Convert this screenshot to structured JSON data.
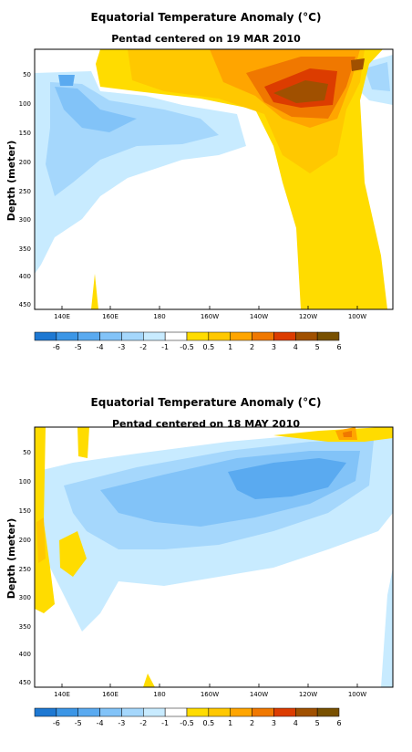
{
  "chart_data": [
    {
      "type": "heatmap",
      "title": "Equatorial Temperature Anomaly (°C)",
      "subtitle": "Pentad centered on 19 MAR 2010",
      "xlabel": "",
      "ylabel": "Depth (meter)",
      "x_ticks": [
        "140E",
        "160E",
        "180",
        "160W",
        "140W",
        "120W",
        "100W"
      ],
      "y_ticks": [
        50,
        100,
        150,
        200,
        250,
        300,
        350,
        400,
        450
      ],
      "ylim": [
        455,
        10
      ],
      "xlim": [
        "130E",
        "90W"
      ],
      "colorbar": {
        "labels": [
          "-6",
          "-5",
          "-4",
          "-3",
          "-2",
          "-1",
          "-0.5",
          "0.5",
          "1",
          "2",
          "3",
          "4",
          "5",
          "6"
        ],
        "colors": [
          "#1e78d2",
          "#3c96e6",
          "#5aaaf0",
          "#82c3f8",
          "#a5d7fc",
          "#c8ebff",
          "#ffffff",
          "#ffdc00",
          "#ffc800",
          "#ffa500",
          "#f07800",
          "#dc3c00",
          "#a05000",
          "#785000"
        ]
      },
      "regions": [
        {
          "label": "warm anomaly 1-2",
          "x_range": [
            "165E",
            "95W"
          ],
          "depth_range": [
            10,
            450
          ]
        },
        {
          "label": "warm core 4-6",
          "x_range": [
            "130W",
            "105W"
          ],
          "depth_range": [
            40,
            130
          ]
        },
        {
          "label": "cold anomaly -0.5 to -2",
          "x_range": [
            "132E",
            "160W"
          ],
          "depth_range": [
            50,
            300
          ]
        },
        {
          "label": "cold anomaly -0.5 to -1",
          "x_range": [
            "100W",
            "91W"
          ],
          "depth_range": [
            40,
            110
          ]
        }
      ]
    },
    {
      "type": "heatmap",
      "title": "Equatorial Temperature Anomaly (°C)",
      "subtitle": "Pentad centered on 18 MAY 2010",
      "xlabel": "",
      "ylabel": "Depth (meter)",
      "x_ticks": [
        "140E",
        "160E",
        "180",
        "160W",
        "140W",
        "120W",
        "100W"
      ],
      "y_ticks": [
        50,
        100,
        150,
        200,
        250,
        300,
        350,
        400,
        450
      ],
      "ylim": [
        455,
        10
      ],
      "xlim": [
        "130E",
        "90W"
      ],
      "colorbar": {
        "labels": [
          "-6",
          "-5",
          "-4",
          "-3",
          "-2",
          "-1",
          "-0.5",
          "0.5",
          "1",
          "2",
          "3",
          "4",
          "5",
          "6"
        ],
        "colors": [
          "#1e78d2",
          "#3c96e6",
          "#5aaaf0",
          "#82c3f8",
          "#a5d7fc",
          "#c8ebff",
          "#ffffff",
          "#ffdc00",
          "#ffc800",
          "#ffa500",
          "#f07800",
          "#dc3c00",
          "#a05000",
          "#785000"
        ]
      },
      "regions": [
        {
          "label": "cold anomaly -0.5 to -3",
          "x_range": [
            "135E",
            "95W"
          ],
          "depth_range": [
            40,
            250
          ]
        },
        {
          "label": "cold core -3",
          "x_range": [
            "150W",
            "110W"
          ],
          "depth_range": [
            90,
            150
          ]
        },
        {
          "label": "warm anomaly 0.5-3",
          "x_range": [
            "118W",
            "97W"
          ],
          "depth_range": [
            10,
            40
          ]
        },
        {
          "label": "warm anomaly 0.5-1",
          "x_range": [
            "130E",
            "140E"
          ],
          "depth_range": [
            100,
            260
          ]
        }
      ]
    }
  ]
}
